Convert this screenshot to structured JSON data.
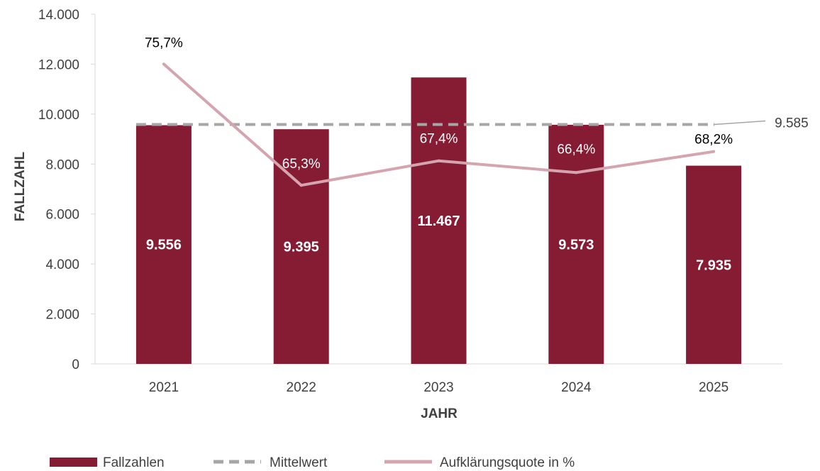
{
  "chart_data": {
    "type": "bar",
    "categories": [
      "2021",
      "2022",
      "2023",
      "2024",
      "2025"
    ],
    "xlabel": "JAHR",
    "ylabel": "FALLZAHL",
    "ylim": [
      0,
      14000
    ],
    "yticks": [
      "0",
      "2.000",
      "4.000",
      "6.000",
      "8.000",
      "10.000",
      "12.000",
      "14.000"
    ],
    "grid": false,
    "legend_position": "bottom",
    "series": [
      {
        "name": "Fallzahlen",
        "kind": "bar",
        "color": "#861c33",
        "values": [
          9556,
          9395,
          11467,
          9573,
          7935
        ],
        "labels": [
          "9.556",
          "9.395",
          "11.467",
          "9.573",
          "7.935"
        ]
      },
      {
        "name": "Mittelwert",
        "kind": "line-dashed",
        "color": "#a6a6a6",
        "values": [
          9585,
          9585,
          9585,
          9585,
          9585
        ],
        "end_label": "9.585"
      },
      {
        "name": "Aufklärungsquote in %",
        "kind": "line",
        "color": "#d4a5ae",
        "plotted_y": [
          12000,
          7150,
          8130,
          7660,
          8500
        ],
        "labels": [
          "75,7%",
          "65,3%",
          "67,4%",
          "66,4%",
          "68,2%"
        ]
      }
    ]
  }
}
